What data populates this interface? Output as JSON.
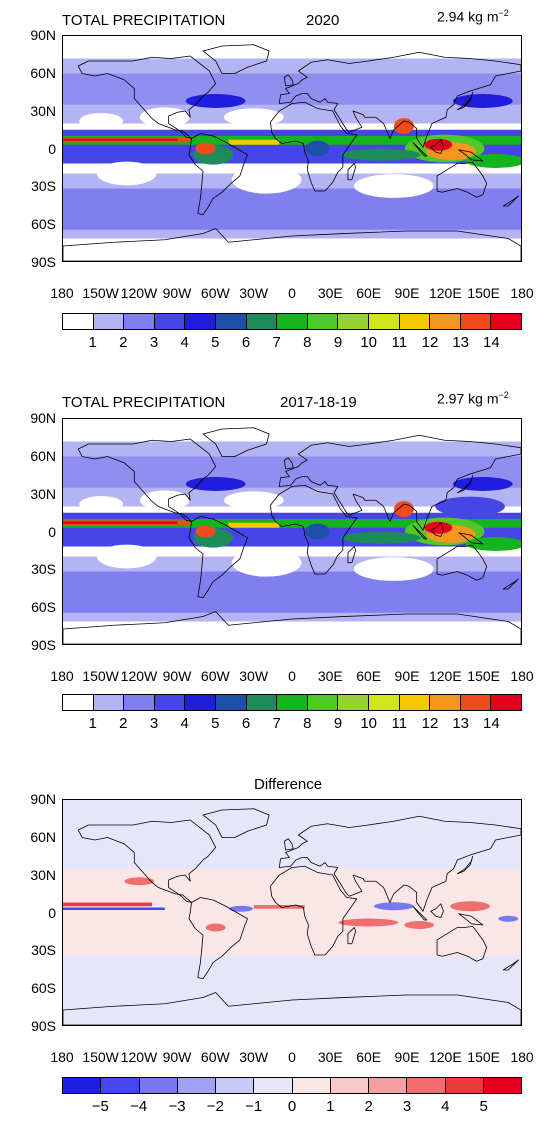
{
  "panels": [
    {
      "title": "TOTAL PRECIPITATION",
      "period": "2020",
      "mean_value": "2.94",
      "mean_unit": "kg m",
      "mean_exp": "−2",
      "colorbar_labels": [
        "1",
        "2",
        "3",
        "4",
        "5",
        "6",
        "7",
        "8",
        "9",
        "10",
        "11",
        "12",
        "13",
        "14"
      ],
      "colorbar_colors": [
        "#ffffff",
        "#b4b4f5",
        "#7f7ff0",
        "#4646e6",
        "#1e1edc",
        "#1e50aa",
        "#1e8c5a",
        "#14b41e",
        "#50c828",
        "#96d232",
        "#d2e61e",
        "#f5c800",
        "#f5961e",
        "#f04b1e",
        "#e6001e"
      ]
    },
    {
      "title": "TOTAL PRECIPITATION",
      "period": "2017-18-19",
      "mean_value": "2.97",
      "mean_unit": "kg m",
      "mean_exp": "−2",
      "colorbar_labels": [
        "1",
        "2",
        "3",
        "4",
        "5",
        "6",
        "7",
        "8",
        "9",
        "10",
        "11",
        "12",
        "13",
        "14"
      ],
      "colorbar_colors": [
        "#ffffff",
        "#b4b4f5",
        "#7f7ff0",
        "#4646e6",
        "#1e1edc",
        "#1e50aa",
        "#1e8c5a",
        "#14b41e",
        "#50c828",
        "#96d232",
        "#d2e61e",
        "#f5c800",
        "#f5961e",
        "#f04b1e",
        "#e6001e"
      ]
    },
    {
      "title": "Difference",
      "colorbar_labels": [
        "−5",
        "−4",
        "−3",
        "−2",
        "−1",
        "0",
        "1",
        "2",
        "3",
        "4",
        "5"
      ],
      "colorbar_colors": [
        "#1e1ee6",
        "#4646f0",
        "#7878f0",
        "#a0a0f5",
        "#c8c8fa",
        "#e6e6fa",
        "#fae6e6",
        "#fac8c8",
        "#f5a0a0",
        "#f06e6e",
        "#eb3c3c",
        "#e6001e"
      ]
    }
  ],
  "lat_labels": [
    "90N",
    "60N",
    "30N",
    "0",
    "30S",
    "60S",
    "90S"
  ],
  "lon_labels": [
    "180",
    "150W",
    "120W",
    "90W",
    "60W",
    "30W",
    "0",
    "30E",
    "60E",
    "90E",
    "120E",
    "150E",
    "180"
  ]
}
